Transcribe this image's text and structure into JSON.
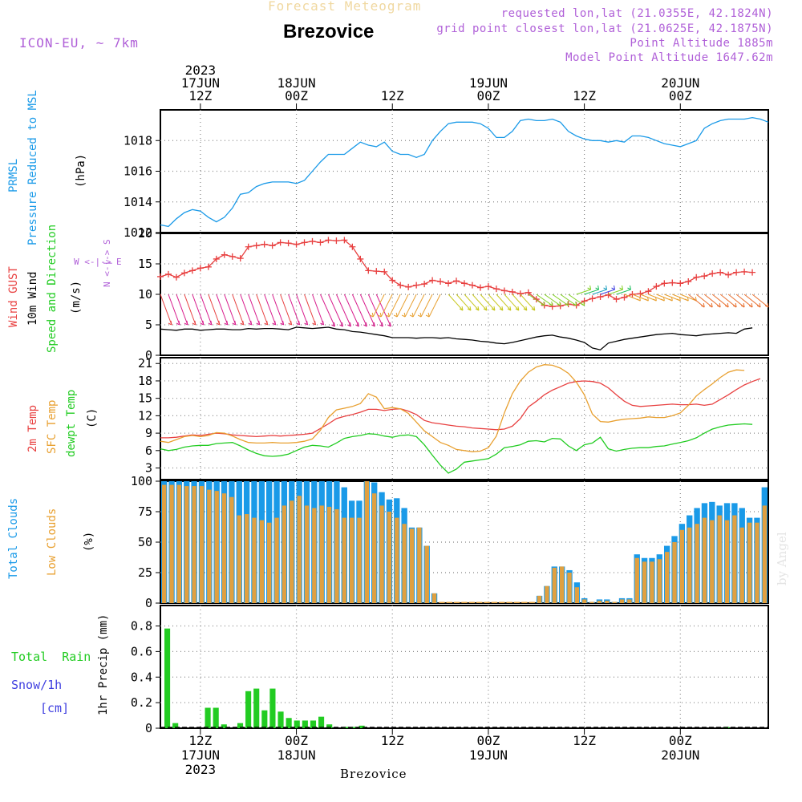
{
  "header": {
    "subtitle": "Forecast Meteogram",
    "station": "Brezovice",
    "model": "ICON-EU, ~ 7km",
    "requested": "requested lon,lat (21.0355E, 42.1824N)",
    "gridpoint": "grid point closest lon,lat (21.0625E, 42.1875N)",
    "altitude": "Point Altitude 1885m",
    "model_altitude": "Model Point Altitude 1647.62m",
    "footer": "Brezovice",
    "credit": "by Angel"
  },
  "time_axis": {
    "top": [
      {
        "lines": [
          "2023",
          "17JUN",
          "12Z"
        ],
        "hour": 12
      },
      {
        "lines": [
          "18JUN",
          "00Z"
        ],
        "hour": 24
      },
      {
        "lines": [
          "12Z"
        ],
        "hour": 36
      },
      {
        "lines": [
          "19JUN",
          "00Z"
        ],
        "hour": 48
      },
      {
        "lines": [
          "12Z"
        ],
        "hour": 60
      },
      {
        "lines": [
          "20JUN",
          "00Z"
        ],
        "hour": 72
      }
    ],
    "bottom": [
      {
        "lines": [
          "12Z",
          "17JUN",
          "2023"
        ],
        "hour": 12
      },
      {
        "lines": [
          "00Z",
          "18JUN"
        ],
        "hour": 24
      },
      {
        "lines": [
          "12Z"
        ],
        "hour": 36
      },
      {
        "lines": [
          "00Z",
          "19JUN"
        ],
        "hour": 48
      },
      {
        "lines": [
          "12Z"
        ],
        "hour": 60
      },
      {
        "lines": [
          "00Z",
          "20JUN"
        ],
        "hour": 72
      }
    ],
    "start_hour": 7,
    "end_hour": 83
  },
  "panel_labels": {
    "pressure": {
      "name": "PRMSL",
      "desc": "Pressure Reduced to MSL",
      "unit": "(hPa)",
      "color": "#1a9ae8"
    },
    "wind": {
      "gust": "Wind GUST",
      "wind10": "10m Wind",
      "dir": "Speed and Direction",
      "unit": "(m/s)",
      "compass_ns": "N <-|-> S",
      "compass_we": "W <-|-> E"
    },
    "temp": {
      "t2m": "2m Temp",
      "sfc": "SFC Temp",
      "dewpt": "dewpt Temp",
      "unit": "(C)"
    },
    "clouds": {
      "total": "Total Clouds",
      "low": "Low Clouds",
      "unit": "(%)"
    },
    "precip": {
      "rain": "Total  Rain",
      "snow": "Snow/1h",
      "cm": "[cm]",
      "unit": "1hr Precip (mm)"
    }
  },
  "chart_data": [
    {
      "type": "line",
      "id": "pressure",
      "ylabel": "(hPa)",
      "ylim": [
        1012,
        1020
      ],
      "yticks": [
        1012,
        1014,
        1016,
        1018
      ],
      "x_hours": [
        7,
        8,
        9,
        10,
        11,
        12,
        13,
        14,
        15,
        16,
        17,
        18,
        19,
        20,
        21,
        22,
        23,
        24,
        25,
        26,
        27,
        28,
        29,
        30,
        31,
        32,
        33,
        34,
        35,
        36,
        37,
        38,
        39,
        40,
        41,
        42,
        43,
        44,
        45,
        46,
        47,
        48,
        49,
        50,
        51,
        52,
        53,
        54,
        55,
        56,
        57,
        58,
        59,
        60,
        61,
        62,
        63,
        64,
        65,
        66,
        67,
        68,
        69,
        70,
        71,
        72,
        73,
        74,
        75,
        76,
        77,
        78,
        79,
        80,
        81,
        82,
        83
      ],
      "series": [
        {
          "name": "PRMSL",
          "color": "#1a9ae8",
          "values": [
            1012.5,
            1012.4,
            1012.9,
            1013.3,
            1013.5,
            1013.4,
            1013.0,
            1012.7,
            1013.0,
            1013.6,
            1014.5,
            1014.6,
            1015.0,
            1015.2,
            1015.3,
            1015.3,
            1015.3,
            1015.2,
            1015.4,
            1016.0,
            1016.6,
            1017.1,
            1017.1,
            1017.1,
            1017.5,
            1017.9,
            1017.7,
            1017.6,
            1017.9,
            1017.3,
            1017.1,
            1017.1,
            1016.9,
            1017.1,
            1018.0,
            1018.6,
            1019.1,
            1019.2,
            1019.2,
            1019.2,
            1019.1,
            1018.8,
            1018.2,
            1018.2,
            1018.6,
            1019.3,
            1019.4,
            1019.3,
            1019.3,
            1019.4,
            1019.2,
            1018.6,
            1018.3,
            1018.1,
            1018.0,
            1018.0,
            1017.9,
            1018.0,
            1017.9,
            1018.3,
            1018.3,
            1018.2,
            1018.0,
            1017.8,
            1017.7,
            1017.6,
            1017.8,
            1018.0,
            1018.8,
            1019.1,
            1019.3,
            1019.4,
            1019.4,
            1019.4,
            1019.5,
            1019.4,
            1019.2
          ]
        }
      ]
    },
    {
      "type": "line",
      "id": "wind",
      "ylabel": "(m/s)",
      "ylim": [
        0,
        20
      ],
      "yticks": [
        0,
        5,
        10,
        15,
        20
      ],
      "series": [
        {
          "name": "Wind GUST",
          "color": "#e84040",
          "marker": "+",
          "values": [
            12.9,
            13.3,
            12.8,
            13.5,
            13.9,
            14.3,
            14.5,
            15.8,
            16.5,
            16.2,
            15.9,
            17.8,
            18.0,
            18.2,
            18.0,
            18.5,
            18.4,
            18.2,
            18.5,
            18.7,
            18.5,
            18.9,
            18.8,
            18.9,
            17.8,
            15.8,
            13.9,
            13.8,
            13.7,
            12.3,
            11.5,
            11.2,
            11.5,
            11.7,
            12.3,
            12.1,
            11.8,
            12.2,
            11.8,
            11.5,
            11.1,
            11.3,
            10.9,
            10.6,
            10.4,
            10.1,
            10.3,
            9.2,
            8.2,
            8.0,
            8.1,
            8.4,
            8.2,
            8.9,
            9.3,
            9.6,
            9.9,
            9.2,
            9.5,
            10.0,
            10.1,
            10.5,
            11.3,
            11.8,
            11.9,
            11.8,
            12.1,
            12.8,
            13.0,
            13.4,
            13.6,
            13.2,
            13.6,
            13.7,
            13.6
          ]
        },
        {
          "name": "10m Wind",
          "color": "#000000",
          "values": [
            4.3,
            4.2,
            4.1,
            4.3,
            4.3,
            4.1,
            4.2,
            4.3,
            4.3,
            4.2,
            4.2,
            4.4,
            4.3,
            4.4,
            4.4,
            4.3,
            4.2,
            4.6,
            4.5,
            4.4,
            4.5,
            4.6,
            4.3,
            4.2,
            3.9,
            3.8,
            3.6,
            3.4,
            3.2,
            2.9,
            2.9,
            2.9,
            2.8,
            2.9,
            2.9,
            2.8,
            2.9,
            2.7,
            2.6,
            2.5,
            2.3,
            2.2,
            2.0,
            1.9,
            2.1,
            2.4,
            2.7,
            3.0,
            3.2,
            3.3,
            3.0,
            2.8,
            2.5,
            2.1,
            1.2,
            0.9,
            2.0,
            2.3,
            2.6,
            2.8,
            3.0,
            3.2,
            3.4,
            3.5,
            3.6,
            3.4,
            3.3,
            3.2,
            3.4,
            3.5,
            3.6,
            3.7,
            3.6,
            4.3,
            4.5
          ]
        }
      ]
    },
    {
      "type": "line",
      "id": "temperature",
      "ylabel": "(C)",
      "ylim": [
        1,
        22
      ],
      "yticks": [
        3,
        6,
        9,
        12,
        15,
        18,
        21
      ],
      "series": [
        {
          "name": "2m Temp",
          "color": "#e84040",
          "values": [
            8.2,
            8.2,
            8.3,
            8.5,
            8.7,
            8.6,
            8.8,
            9.0,
            8.9,
            8.7,
            8.6,
            8.5,
            8.4,
            8.5,
            8.6,
            8.5,
            8.6,
            8.7,
            8.8,
            9.0,
            9.8,
            10.6,
            11.5,
            11.9,
            12.2,
            12.6,
            13.1,
            13.1,
            12.9,
            13.1,
            13.2,
            12.8,
            12.2,
            11.2,
            10.8,
            10.6,
            10.4,
            10.2,
            10.1,
            9.9,
            9.8,
            9.7,
            9.6,
            9.7,
            10.2,
            11.5,
            13.5,
            14.5,
            15.6,
            16.4,
            17.0,
            17.6,
            17.9,
            18.0,
            17.9,
            17.6,
            16.8,
            15.6,
            14.5,
            13.8,
            13.6,
            13.7,
            13.8,
            13.9,
            14.0,
            13.9,
            13.9,
            14.0,
            13.8,
            14.0,
            14.8,
            15.6,
            16.5,
            17.3,
            17.9,
            18.4
          ]
        },
        {
          "name": "SFC Temp",
          "color": "#e8a030",
          "values": [
            7.6,
            7.4,
            7.9,
            8.4,
            8.6,
            8.4,
            8.6,
            9.1,
            9.0,
            8.5,
            7.9,
            7.4,
            7.3,
            7.3,
            7.4,
            7.3,
            7.3,
            7.4,
            7.6,
            8.0,
            9.5,
            11.7,
            13.0,
            13.3,
            13.6,
            14.1,
            15.8,
            15.2,
            13.2,
            13.4,
            13.2,
            12.4,
            10.9,
            9.4,
            8.4,
            7.4,
            6.9,
            6.2,
            6.0,
            5.8,
            5.9,
            6.5,
            8.5,
            12.5,
            15.8,
            18.0,
            19.5,
            20.4,
            20.8,
            20.7,
            20.2,
            19.3,
            17.8,
            15.6,
            12.3,
            11.0,
            10.9,
            11.2,
            11.4,
            11.5,
            11.6,
            11.8,
            11.7,
            11.7,
            12.0,
            12.5,
            13.8,
            15.4,
            16.5,
            17.5,
            18.6,
            19.5,
            19.9,
            19.8
          ]
        },
        {
          "name": "dewpt Temp",
          "color": "#22cc22",
          "values": [
            6.3,
            6.0,
            6.2,
            6.6,
            6.8,
            6.9,
            6.9,
            7.2,
            7.3,
            7.4,
            6.8,
            6.1,
            5.5,
            5.1,
            5.0,
            5.1,
            5.4,
            6.0,
            6.6,
            6.9,
            6.8,
            6.6,
            7.3,
            8.1,
            8.4,
            8.6,
            8.9,
            8.8,
            8.5,
            8.3,
            8.6,
            8.7,
            8.4,
            7.0,
            5.2,
            3.5,
            2.1,
            2.8,
            4.0,
            4.2,
            4.4,
            4.6,
            5.4,
            6.5,
            6.7,
            7.0,
            7.6,
            7.7,
            7.5,
            8.1,
            8.0,
            6.8,
            6.0,
            7.0,
            7.3,
            8.3,
            6.3,
            5.9,
            6.2,
            6.4,
            6.5,
            6.5,
            6.7,
            6.8,
            7.1,
            7.4,
            7.7,
            8.2,
            9.0,
            9.7,
            10.1,
            10.4,
            10.5,
            10.6,
            10.5
          ]
        }
      ]
    },
    {
      "type": "bar",
      "id": "clouds",
      "ylabel": "(%)",
      "ylim": [
        0,
        100
      ],
      "yticks": [
        0,
        25,
        50,
        75,
        100
      ],
      "series": [
        {
          "name": "Total Clouds",
          "color": "#1a9ae8",
          "values": [
            100,
            100,
            100,
            100,
            100,
            100,
            100,
            100,
            100,
            100,
            100,
            100,
            100,
            100,
            100,
            100,
            100,
            100,
            100,
            100,
            100,
            100,
            100,
            100,
            95,
            84,
            84,
            100,
            99,
            91,
            85,
            86,
            78,
            62,
            62,
            47,
            8,
            0,
            0,
            0,
            0,
            0,
            0,
            0,
            0,
            0,
            0,
            0,
            0,
            0,
            6,
            14,
            30,
            30,
            27,
            17,
            4,
            1,
            3,
            3,
            1,
            4,
            4,
            40,
            37,
            37,
            40,
            47,
            55,
            65,
            72,
            78,
            82,
            83,
            80,
            82,
            82,
            78,
            70,
            70,
            95
          ]
        },
        {
          "name": "Low Clouds",
          "color": "#e0a040",
          "values": [
            97,
            97,
            97,
            96,
            96,
            96,
            93,
            92,
            90,
            87,
            72,
            73,
            70,
            68,
            66,
            70,
            80,
            84,
            88,
            80,
            78,
            80,
            79,
            77,
            70,
            70,
            70,
            100,
            90,
            80,
            75,
            70,
            65,
            61,
            62,
            47,
            8,
            0,
            0,
            0,
            0,
            0,
            0,
            0,
            0,
            0,
            0,
            0,
            0,
            0,
            6,
            14,
            29,
            30,
            25,
            13,
            3,
            1,
            2,
            2,
            1,
            3,
            3,
            37,
            34,
            34,
            36,
            42,
            50,
            60,
            62,
            65,
            70,
            68,
            72,
            68,
            72,
            62,
            66,
            66,
            80
          ]
        }
      ]
    },
    {
      "type": "bar",
      "id": "precip",
      "ylabel": "1hr Precip (mm)",
      "ylim": [
        0,
        0.96
      ],
      "yticks": [
        0,
        0.2,
        0.4,
        0.6,
        0.8
      ],
      "series": [
        {
          "name": "Total Rain",
          "color": "#22cc22",
          "values": [
            0.78,
            0.04,
            0,
            0,
            0,
            0.16,
            0.16,
            0.03,
            0,
            0.04,
            0.29,
            0.31,
            0.14,
            0.31,
            0.13,
            0.08,
            0.06,
            0.06,
            0.06,
            0.09,
            0.03,
            0,
            0.01,
            0.01,
            0.02,
            0,
            0,
            0,
            0,
            0,
            0,
            0,
            0,
            0,
            0,
            0,
            0,
            0,
            0,
            0,
            0,
            0,
            0,
            0,
            0,
            0,
            0,
            0,
            0,
            0,
            0,
            0,
            0,
            0,
            0,
            0,
            0,
            0,
            0,
            0,
            0,
            0,
            0,
            0,
            0,
            0,
            0,
            0,
            0,
            0.01,
            0,
            0,
            0,
            0,
            0
          ]
        },
        {
          "name": "Snow/1h",
          "color": "#4040e0",
          "values": []
        }
      ]
    }
  ]
}
